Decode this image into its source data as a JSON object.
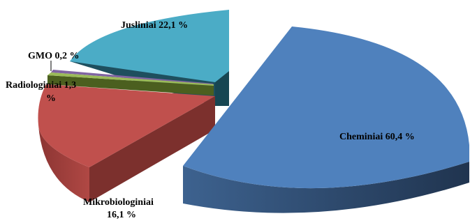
{
  "chart_data": {
    "type": "pie",
    "style": "3d-exploded",
    "categories": [
      "Cheminiai",
      "Mikrobiologiniai",
      "Radiologiniai",
      "GMO",
      "Jusliniai"
    ],
    "values": [
      60.4,
      16.1,
      1.3,
      0.2,
      22.1
    ],
    "label_texts": {
      "cheminiai": "Cheminiai  60,4 %",
      "mikro_line1": "Mikrobiologiniai",
      "mikro_line2": "16,1 %",
      "radio_line1": "Radiologiniai   1,3",
      "radio_line2": "%",
      "gmo": "GMO  0,2 %",
      "jusliniai": "Jusliniai  22,1 %"
    },
    "colors": {
      "cheminiai": "#4F81BD",
      "mikrobiologiniai": "#C0504D",
      "radiologiniai": "#9BBB59",
      "gmo": "#8064A2",
      "jusliniai": "#4BACC6"
    }
  }
}
